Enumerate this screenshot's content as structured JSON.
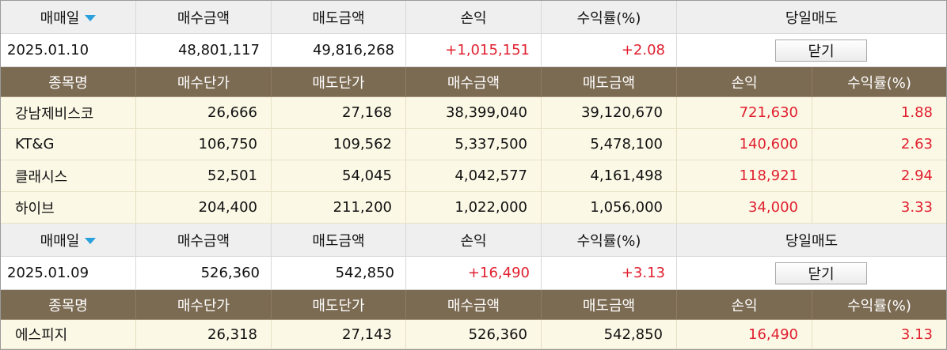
{
  "section_header": {
    "trade_date": "매매일",
    "buy_amount": "매수금액",
    "sell_amount": "매도금액",
    "profit": "손익",
    "return_rate": "수익률(%)",
    "same_day_sell": "당일매도"
  },
  "column_header": {
    "stock_name": "종목명",
    "buy_price": "매수단가",
    "sell_price": "매도단가",
    "buy_amount": "매수금액",
    "sell_amount": "매도금액",
    "profit": "손익",
    "return_rate": "수익률(%)"
  },
  "close_label": "닫기",
  "groups": [
    {
      "summary": {
        "date": "2025.01.10",
        "buy_amount": "48,801,117",
        "sell_amount": "49,816,268",
        "profit": "+1,015,151",
        "return_rate": "+2.08"
      },
      "rows": [
        {
          "name": "강남제비스코",
          "buy_price": "26,666",
          "sell_price": "27,168",
          "buy_amount": "38,399,040",
          "sell_amount": "39,120,670",
          "profit": "721,630",
          "return_rate": "1.88"
        },
        {
          "name": "KT&G",
          "buy_price": "106,750",
          "sell_price": "109,562",
          "buy_amount": "5,337,500",
          "sell_amount": "5,478,100",
          "profit": "140,600",
          "return_rate": "2.63"
        },
        {
          "name": "클래시스",
          "buy_price": "52,501",
          "sell_price": "54,045",
          "buy_amount": "4,042,577",
          "sell_amount": "4,161,498",
          "profit": "118,921",
          "return_rate": "2.94"
        },
        {
          "name": "하이브",
          "buy_price": "204,400",
          "sell_price": "211,200",
          "buy_amount": "1,022,000",
          "sell_amount": "1,056,000",
          "profit": "34,000",
          "return_rate": "3.33"
        }
      ]
    },
    {
      "summary": {
        "date": "2025.01.09",
        "buy_amount": "526,360",
        "sell_amount": "542,850",
        "profit": "+16,490",
        "return_rate": "+3.13"
      },
      "rows": [
        {
          "name": "에스피지",
          "buy_price": "26,318",
          "sell_price": "27,143",
          "buy_amount": "526,360",
          "sell_amount": "542,850",
          "profit": "16,490",
          "return_rate": "3.13"
        }
      ]
    }
  ],
  "colors": {
    "column_header_bg": "#7c6b53",
    "row_bg": "#fcf8e6",
    "positive": "#e0202f",
    "sort_caret": "#2aa0dc"
  },
  "icons": {
    "sort": "caret-down-icon"
  }
}
